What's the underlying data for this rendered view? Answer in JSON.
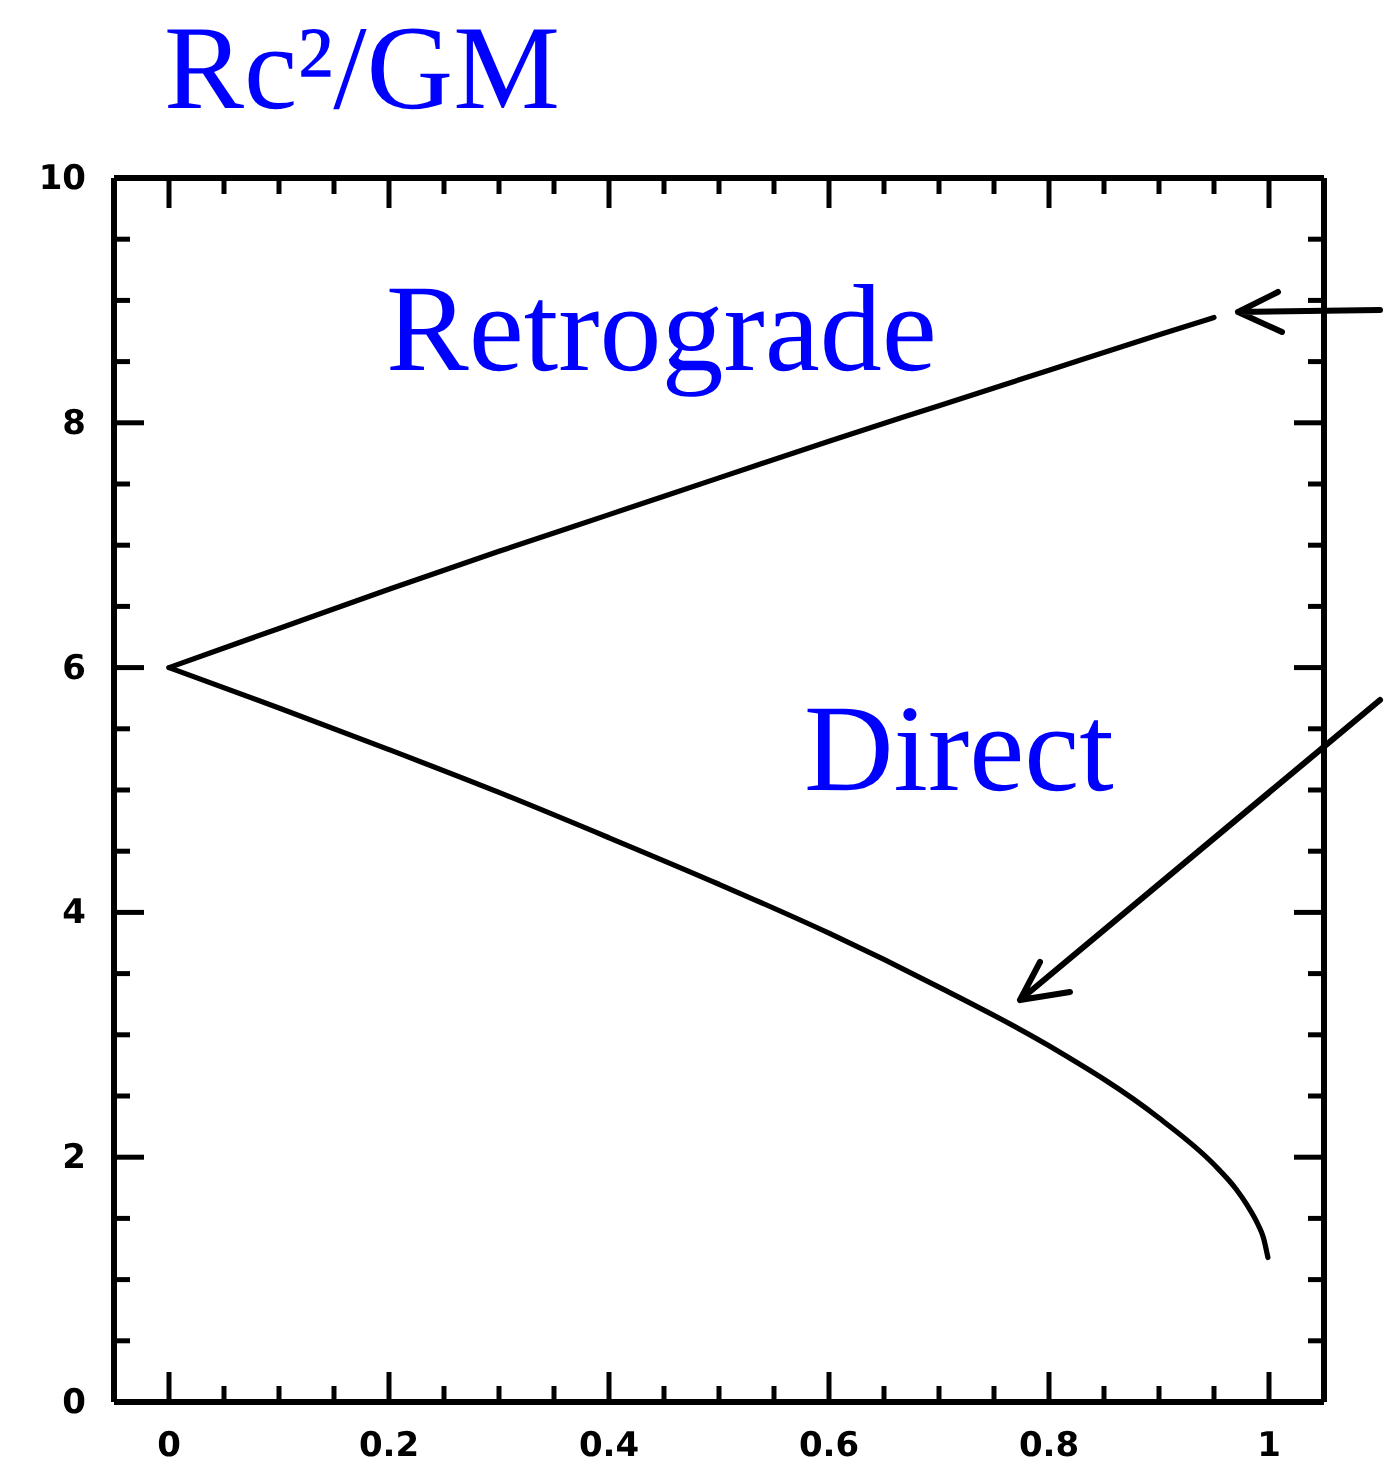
{
  "chart_data": {
    "type": "line",
    "ylabel": "Rc²/GM",
    "series": [
      {
        "name": "Retrograde",
        "color": "#000000",
        "x": [
          0,
          0.1,
          0.2,
          0.3,
          0.4,
          0.5,
          0.6,
          0.7,
          0.8,
          0.9,
          0.95
        ],
        "values": [
          6,
          6.32,
          6.64,
          6.95,
          7.25,
          7.55,
          7.85,
          8.14,
          8.43,
          8.72,
          8.86
        ]
      },
      {
        "name": "Direct",
        "color": "#000000",
        "x": [
          0,
          0.1,
          0.2,
          0.3,
          0.4,
          0.5,
          0.6,
          0.7,
          0.8,
          0.9,
          0.95,
          0.97,
          0.98,
          0.99,
          0.995,
          0.999
        ],
        "values": [
          6,
          5.67,
          5.33,
          4.98,
          4.61,
          4.23,
          3.83,
          3.39,
          2.91,
          2.32,
          1.94,
          1.74,
          1.61,
          1.45,
          1.34,
          1.18
        ]
      }
    ],
    "xlim": [
      -0.05,
      1.05
    ],
    "ylim": [
      0,
      10
    ],
    "xticks": [
      0,
      {
        "value": 0.05,
        "label": null
      },
      {
        "value": 0.1,
        "label": null
      },
      {
        "value": 0.15,
        "label": null
      },
      0.2,
      {
        "value": 0.25,
        "label": null
      },
      {
        "value": 0.3,
        "label": null
      },
      {
        "value": 0.35,
        "label": null
      },
      0.4,
      {
        "value": 0.45,
        "label": null
      },
      {
        "value": 0.5,
        "label": null
      },
      {
        "value": 0.55,
        "label": null
      },
      0.6,
      {
        "value": 0.65,
        "label": null
      },
      {
        "value": 0.7,
        "label": null
      },
      {
        "value": 0.75,
        "label": null
      },
      0.8,
      {
        "value": 0.85,
        "label": null
      },
      {
        "value": 0.9,
        "label": null
      },
      {
        "value": 0.95,
        "label": null
      },
      1
    ],
    "yticks": [
      0,
      {
        "value": 0.5,
        "label": null
      },
      {
        "value": 1,
        "label": null
      },
      {
        "value": 1.5,
        "label": null
      },
      2,
      {
        "value": 2.5,
        "label": null
      },
      {
        "value": 3,
        "label": null
      },
      {
        "value": 3.5,
        "label": null
      },
      4,
      {
        "value": 4.5,
        "label": null
      },
      {
        "value": 5,
        "label": null
      },
      {
        "value": 5.5,
        "label": null
      },
      6,
      {
        "value": 6.5,
        "label": null
      },
      {
        "value": 7,
        "label": null
      },
      {
        "value": 7.5,
        "label": null
      },
      8,
      {
        "value": 8.5,
        "label": null
      },
      {
        "value": 9,
        "label": null
      },
      {
        "value": 9.5,
        "label": null
      },
      10
    ]
  }
}
